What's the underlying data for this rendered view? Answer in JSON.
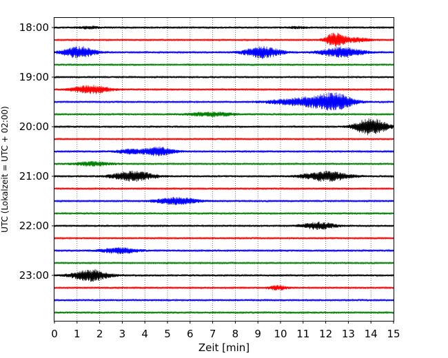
{
  "chart_data": {
    "type": "line",
    "subtype": "helicorder seismogram",
    "xlabel": "Zeit  [min]",
    "ylabel": "UTC (Lokalzeit = UTC + 02:00)",
    "xlim": [
      0,
      15
    ],
    "x_ticks": [
      "0",
      "1",
      "2",
      "3",
      "4",
      "5",
      "6",
      "7",
      "8",
      "9",
      "10",
      "11",
      "12",
      "13",
      "14",
      "15"
    ],
    "y_tick_labels": [
      "18:00",
      "19:00",
      "20:00",
      "21:00",
      "22:00",
      "23:00"
    ],
    "row_interval_min": 15,
    "grid": "vertical dotted at each minute",
    "trace_color_cycle": [
      "#000000",
      "#ff0000",
      "#0000ff",
      "#008000"
    ],
    "traces": [
      {
        "time": "18:00",
        "events": [
          {
            "t": 1.5,
            "amp": 1.5,
            "dur": 0.5
          },
          {
            "t": 10.7,
            "amp": 1.2,
            "dur": 0.5
          }
        ]
      },
      {
        "time": "18:15",
        "events": [
          {
            "t": 12.4,
            "amp": 10,
            "dur": 0.4
          },
          {
            "t": 13.3,
            "amp": 3,
            "dur": 0.7
          }
        ]
      },
      {
        "time": "18:30",
        "events": [
          {
            "t": 1.1,
            "amp": 8,
            "dur": 0.7
          },
          {
            "t": 9.2,
            "amp": 8,
            "dur": 0.8
          },
          {
            "t": 12.7,
            "amp": 7,
            "dur": 0.9
          }
        ]
      },
      {
        "time": "18:45",
        "events": []
      },
      {
        "time": "19:00",
        "events": []
      },
      {
        "time": "19:15",
        "events": [
          {
            "t": 1.6,
            "amp": 6,
            "dur": 0.8
          }
        ]
      },
      {
        "time": "19:30",
        "events": [
          {
            "t": 11.0,
            "amp": 6,
            "dur": 1.3
          },
          {
            "t": 12.4,
            "amp": 11,
            "dur": 0.8
          }
        ]
      },
      {
        "time": "19:45",
        "events": [
          {
            "t": 6.9,
            "amp": 3,
            "dur": 1.0
          }
        ]
      },
      {
        "time": "20:00",
        "events": [
          {
            "t": 14.0,
            "amp": 12,
            "dur": 0.7
          }
        ]
      },
      {
        "time": "20:15",
        "events": []
      },
      {
        "time": "20:30",
        "events": [
          {
            "t": 3.3,
            "amp": 3,
            "dur": 0.6
          },
          {
            "t": 4.6,
            "amp": 6,
            "dur": 0.7
          }
        ]
      },
      {
        "time": "20:45",
        "events": [
          {
            "t": 1.7,
            "amp": 3,
            "dur": 0.8
          }
        ]
      },
      {
        "time": "21:00",
        "events": [
          {
            "t": 3.5,
            "amp": 7,
            "dur": 0.9
          },
          {
            "t": 12.0,
            "amp": 7,
            "dur": 1.0
          }
        ]
      },
      {
        "time": "21:15",
        "events": []
      },
      {
        "time": "21:30",
        "events": [
          {
            "t": 5.4,
            "amp": 5,
            "dur": 0.9
          }
        ]
      },
      {
        "time": "21:45",
        "events": []
      },
      {
        "time": "22:00",
        "events": [
          {
            "t": 11.7,
            "amp": 5,
            "dur": 0.7
          }
        ]
      },
      {
        "time": "22:15",
        "events": []
      },
      {
        "time": "22:30",
        "events": [
          {
            "t": 2.9,
            "amp": 4,
            "dur": 0.8
          }
        ]
      },
      {
        "time": "22:45",
        "events": []
      },
      {
        "time": "23:00",
        "events": [
          {
            "t": 1.6,
            "amp": 8,
            "dur": 0.8
          }
        ]
      },
      {
        "time": "23:15",
        "events": [
          {
            "t": 9.9,
            "amp": 3,
            "dur": 0.4
          }
        ]
      },
      {
        "time": "23:30",
        "events": []
      },
      {
        "time": "23:45",
        "events": []
      }
    ]
  }
}
